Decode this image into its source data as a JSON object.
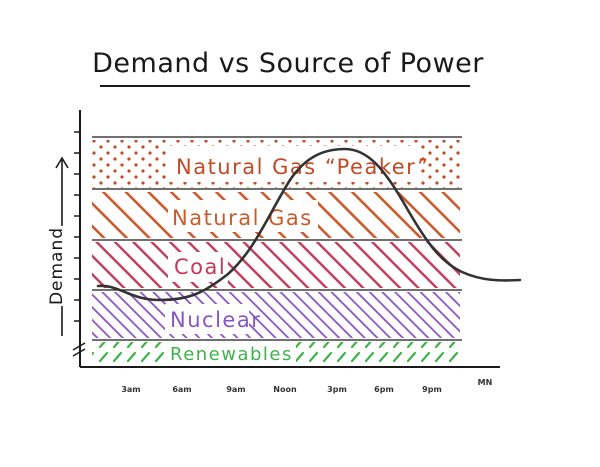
{
  "title": "Demand vs Source of Power",
  "y_axis_label": "Demand",
  "x_ticks": [
    "3am",
    "6am",
    "9am",
    "Noon",
    "3pm",
    "6pm",
    "9pm",
    "MN"
  ],
  "bands": [
    {
      "id": "natural-gas-peaker",
      "label": "Natural Gas “Peaker”",
      "color": "#c24a24",
      "pattern": "dots"
    },
    {
      "id": "natural-gas",
      "label": "Natural Gas",
      "color": "#cc5a2c",
      "pattern": "hatch"
    },
    {
      "id": "coal",
      "label": "Coal",
      "color": "#c23a5c",
      "pattern": "hatch"
    },
    {
      "id": "nuclear",
      "label": "Nuclear",
      "color": "#8a55c4",
      "pattern": "hatch"
    },
    {
      "id": "renewables",
      "label": "Renewables",
      "color": "#3fb34a",
      "pattern": "dash"
    }
  ],
  "demand_curve_color": "#333333"
}
